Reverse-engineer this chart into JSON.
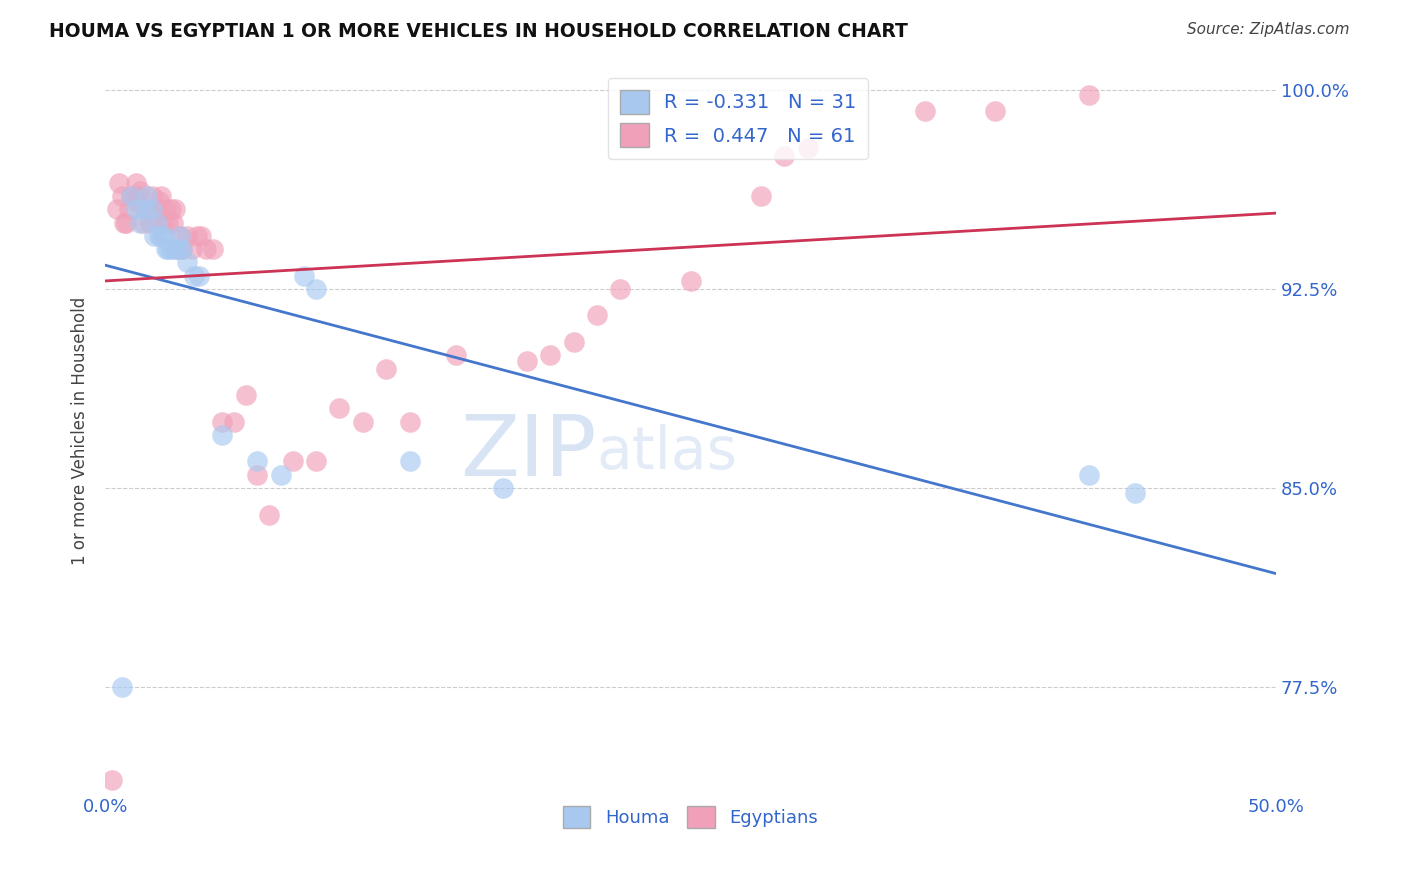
{
  "title": "HOUMA VS EGYPTIAN 1 OR MORE VEHICLES IN HOUSEHOLD CORRELATION CHART",
  "source": "Source: ZipAtlas.com",
  "ylabel": "1 or more Vehicles in Household",
  "xlim": [
    0.0,
    0.5
  ],
  "ylim": [
    0.735,
    1.008
  ],
  "xticks": [
    0.0,
    0.1,
    0.2,
    0.3,
    0.4,
    0.5
  ],
  "xticklabels": [
    "0.0%",
    "",
    "",
    "",
    "",
    "50.0%"
  ],
  "yticks": [
    0.775,
    0.85,
    0.925,
    1.0
  ],
  "yticklabels": [
    "77.5%",
    "85.0%",
    "92.5%",
    "100.0%"
  ],
  "houma_R": -0.331,
  "houma_N": 31,
  "egyptian_R": 0.447,
  "egyptian_N": 61,
  "blue_color": "#A8C8F0",
  "pink_color": "#F0A0B8",
  "blue_line_color": "#4477CC",
  "pink_line_color": "#CC3355",
  "watermark_zip": "ZIP",
  "watermark_atlas": "atlas",
  "houma_x": [
    0.007,
    0.011,
    0.013,
    0.015,
    0.017,
    0.018,
    0.02,
    0.021,
    0.022,
    0.023,
    0.024,
    0.025,
    0.026,
    0.027,
    0.028,
    0.03,
    0.031,
    0.032,
    0.033,
    0.035,
    0.038,
    0.04,
    0.05,
    0.065,
    0.075,
    0.085,
    0.09,
    0.13,
    0.17,
    0.42,
    0.44
  ],
  "houma_y": [
    0.775,
    0.96,
    0.955,
    0.95,
    0.955,
    0.96,
    0.955,
    0.945,
    0.95,
    0.945,
    0.945,
    0.945,
    0.94,
    0.94,
    0.94,
    0.94,
    0.94,
    0.945,
    0.94,
    0.935,
    0.93,
    0.93,
    0.87,
    0.86,
    0.855,
    0.93,
    0.925,
    0.86,
    0.85,
    0.855,
    0.848
  ],
  "egyptian_x": [
    0.003,
    0.005,
    0.006,
    0.007,
    0.008,
    0.009,
    0.01,
    0.011,
    0.012,
    0.013,
    0.013,
    0.014,
    0.015,
    0.016,
    0.017,
    0.018,
    0.019,
    0.02,
    0.021,
    0.022,
    0.023,
    0.024,
    0.025,
    0.026,
    0.027,
    0.028,
    0.029,
    0.03,
    0.031,
    0.032,
    0.033,
    0.035,
    0.037,
    0.039,
    0.041,
    0.043,
    0.046,
    0.05,
    0.055,
    0.06,
    0.065,
    0.07,
    0.08,
    0.09,
    0.1,
    0.11,
    0.12,
    0.13,
    0.15,
    0.18,
    0.19,
    0.2,
    0.21,
    0.22,
    0.25,
    0.28,
    0.29,
    0.3,
    0.35,
    0.38,
    0.42
  ],
  "egyptian_y": [
    0.74,
    0.955,
    0.965,
    0.96,
    0.95,
    0.95,
    0.955,
    0.96,
    0.96,
    0.965,
    0.958,
    0.96,
    0.962,
    0.95,
    0.955,
    0.955,
    0.95,
    0.96,
    0.952,
    0.955,
    0.958,
    0.96,
    0.95,
    0.955,
    0.95,
    0.955,
    0.95,
    0.955,
    0.94,
    0.945,
    0.94,
    0.945,
    0.94,
    0.945,
    0.945,
    0.94,
    0.94,
    0.875,
    0.875,
    0.885,
    0.855,
    0.84,
    0.86,
    0.86,
    0.88,
    0.875,
    0.895,
    0.875,
    0.9,
    0.898,
    0.9,
    0.905,
    0.915,
    0.925,
    0.928,
    0.96,
    0.975,
    0.978,
    0.992,
    0.992,
    0.998
  ]
}
